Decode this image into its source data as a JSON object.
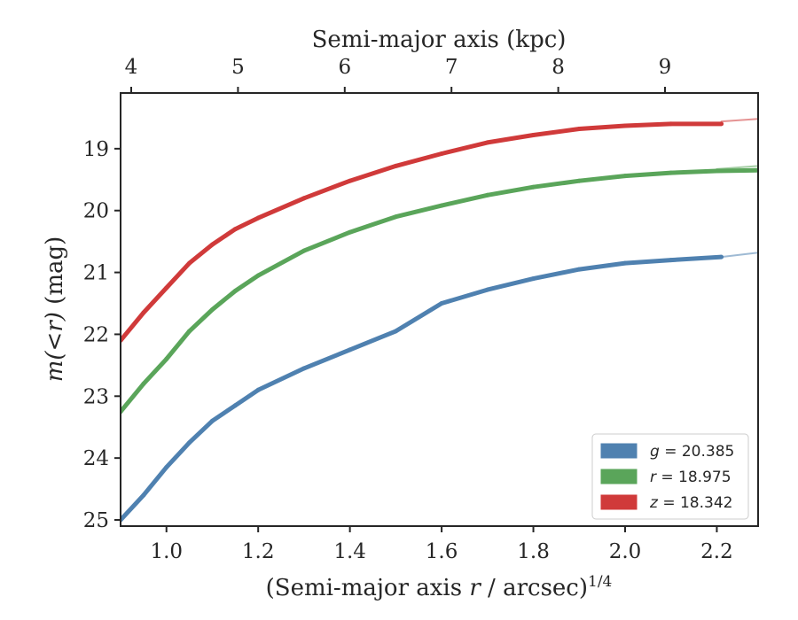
{
  "chart_data": {
    "type": "line",
    "title": "",
    "xlabel": "(Semi-major axis r / arcsec)",
    "xlabel_prefix": "(Semi-major axis ",
    "xlabel_var": "r",
    "xlabel_suffix": " / arcsec)",
    "xlabel_exponent": "1/4",
    "ylabel_prefix": "m(<r)",
    "ylabel_suffix": " (mag)",
    "top_xlabel": "Semi-major axis (kpc)",
    "xlim": [
      0.9,
      2.29
    ],
    "ylim": [
      25.1,
      18.1
    ],
    "y_inverted": true,
    "xticks": [
      "1.0",
      "1.2",
      "1.4",
      "1.6",
      "1.8",
      "2.0",
      "2.2"
    ],
    "yticks": [
      "19",
      "20",
      "21",
      "22",
      "23",
      "24",
      "25"
    ],
    "top_xticks": [
      "4",
      "5",
      "6",
      "7",
      "8",
      "9"
    ],
    "grid": false,
    "legend_position": "lower-right",
    "series": [
      {
        "name": "g = 20.385",
        "legend_var": "g",
        "legend_value": "= 20.385",
        "color": "#4f81b0",
        "x": [
          0.9,
          0.95,
          1.0,
          1.05,
          1.1,
          1.15,
          1.2,
          1.3,
          1.4,
          1.5,
          1.6,
          1.7,
          1.8,
          1.9,
          2.0,
          2.1,
          2.21
        ],
        "y": [
          25.0,
          24.6,
          24.15,
          23.75,
          23.4,
          23.15,
          22.9,
          22.55,
          22.25,
          21.95,
          21.5,
          21.28,
          21.1,
          20.95,
          20.85,
          20.8,
          20.75
        ],
        "model_x": [
          2.21,
          2.29
        ],
        "model_y": [
          20.75,
          20.68
        ]
      },
      {
        "name": "r = 18.975",
        "legend_var": "r",
        "legend_value": "= 18.975",
        "color": "#5aa55a",
        "x": [
          0.9,
          0.95,
          1.0,
          1.05,
          1.1,
          1.15,
          1.2,
          1.3,
          1.4,
          1.5,
          1.6,
          1.7,
          1.8,
          1.9,
          2.0,
          2.1,
          2.2,
          2.29
        ],
        "y": [
          23.25,
          22.8,
          22.4,
          21.95,
          21.6,
          21.3,
          21.05,
          20.65,
          20.35,
          20.1,
          19.92,
          19.75,
          19.62,
          19.52,
          19.44,
          19.39,
          19.36,
          19.35
        ],
        "model_x": [
          2.2,
          2.29
        ],
        "model_y": [
          19.33,
          19.28
        ]
      },
      {
        "name": "z = 18.342",
        "legend_var": "z",
        "legend_value": "= 18.342",
        "color": "#d03a3a",
        "x": [
          0.9,
          0.95,
          1.0,
          1.05,
          1.1,
          1.15,
          1.2,
          1.3,
          1.4,
          1.5,
          1.6,
          1.7,
          1.8,
          1.9,
          2.0,
          2.1,
          2.21
        ],
        "y": [
          22.1,
          21.65,
          21.25,
          20.85,
          20.55,
          20.3,
          20.12,
          19.8,
          19.52,
          19.28,
          19.08,
          18.9,
          18.78,
          18.68,
          18.63,
          18.6,
          18.6
        ],
        "model_x": [
          2.21,
          2.29
        ],
        "model_y": [
          18.56,
          18.52
        ]
      }
    ]
  }
}
